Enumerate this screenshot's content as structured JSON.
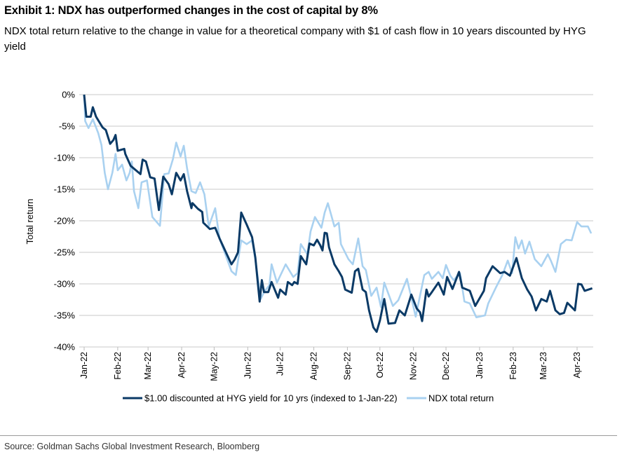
{
  "title": "Exhibit 1: NDX has outperformed changes in the cost of capital by 8%",
  "subtitle": "NDX total return relative to the change in value for a theoretical company with $1 of cash flow in 10 years discounted by HYG yield",
  "source": "Source: Goldman Sachs Global Investment Research, Bloomberg",
  "chart_data": {
    "type": "line",
    "title": "",
    "xlabel": "",
    "ylabel": "Total return",
    "xlim": [
      "2022-01-01",
      "2023-04-15"
    ],
    "ylim": [
      -40,
      0
    ],
    "y_ticks": [
      0,
      -5,
      -10,
      -15,
      -20,
      -25,
      -30,
      -35,
      -40
    ],
    "y_tick_labels": [
      "0%",
      "-5%",
      "-10%",
      "-15%",
      "-20%",
      "-25%",
      "-30%",
      "-35%",
      "-40%"
    ],
    "x_ticks": [
      "2022-01-01",
      "2022-02-01",
      "2022-03-01",
      "2022-04-01",
      "2022-05-01",
      "2022-06-01",
      "2022-07-01",
      "2022-08-01",
      "2022-09-01",
      "2022-10-01",
      "2022-11-01",
      "2022-12-01",
      "2023-01-01",
      "2023-02-01",
      "2023-03-01",
      "2023-04-01"
    ],
    "x_tick_labels": [
      "Jan-22",
      "Feb-22",
      "Mar-22",
      "Apr-22",
      "May-22",
      "Jun-22",
      "Jul-22",
      "Aug-22",
      "Sep-22",
      "Oct-22",
      "Nov-22",
      "Dec-22",
      "Jan-23",
      "Feb-23",
      "Mar-23",
      "Apr-23"
    ],
    "grid": "horizontal",
    "legend_position": "bottom",
    "series": [
      {
        "name": "$1.00 discounted at HYG yield for 10 yrs (indexed to 1-Jan-22)",
        "color": "#0b3a66",
        "points": [
          [
            "2022-01-01",
            0
          ],
          [
            "2022-01-03",
            -3.5
          ],
          [
            "2022-01-07",
            -3.5
          ],
          [
            "2022-01-09",
            -2
          ],
          [
            "2022-01-12",
            -3.5
          ],
          [
            "2022-01-18",
            -5.2
          ],
          [
            "2022-01-21",
            -5.6
          ],
          [
            "2022-01-25",
            -7.8
          ],
          [
            "2022-01-28",
            -7.2
          ],
          [
            "2022-01-30",
            -6.4
          ],
          [
            "2022-02-01",
            -8.9
          ],
          [
            "2022-02-07",
            -8.6
          ],
          [
            "2022-02-08",
            -9.4
          ],
          [
            "2022-02-13",
            -11.3
          ],
          [
            "2022-02-22",
            -12.6
          ],
          [
            "2022-02-24",
            -10.3
          ],
          [
            "2022-02-27",
            -10.6
          ],
          [
            "2022-03-03",
            -13.1
          ],
          [
            "2022-03-07",
            -13.3
          ],
          [
            "2022-03-11",
            -18.3
          ],
          [
            "2022-03-15",
            -13
          ],
          [
            "2022-03-20",
            -14.2
          ],
          [
            "2022-03-23",
            -15.8
          ],
          [
            "2022-03-27",
            -12.4
          ],
          [
            "2022-03-31",
            -13.6
          ],
          [
            "2022-04-03",
            -12.6
          ],
          [
            "2022-04-06",
            -15.3
          ],
          [
            "2022-04-10",
            -18
          ],
          [
            "2022-04-11",
            -17.2
          ],
          [
            "2022-04-16",
            -18.1
          ],
          [
            "2022-04-20",
            -18.6
          ],
          [
            "2022-04-21",
            -20.3
          ],
          [
            "2022-04-27",
            -21.3
          ],
          [
            "2022-05-02",
            -21.1
          ],
          [
            "2022-05-06",
            -22.8
          ],
          [
            "2022-05-17",
            -26.9
          ],
          [
            "2022-05-20",
            -26.1
          ],
          [
            "2022-05-23",
            -25
          ],
          [
            "2022-05-26",
            -18.7
          ],
          [
            "2022-05-31",
            -20.6
          ],
          [
            "2022-06-05",
            -22.6
          ],
          [
            "2022-06-08",
            -25.8
          ],
          [
            "2022-06-12",
            -32.8
          ],
          [
            "2022-06-14",
            -29.4
          ],
          [
            "2022-06-16",
            -31.3
          ],
          [
            "2022-06-20",
            -31.3
          ],
          [
            "2022-06-23",
            -29.7
          ],
          [
            "2022-06-29",
            -32.2
          ],
          [
            "2022-07-01",
            -30.9
          ],
          [
            "2022-07-06",
            -31.7
          ],
          [
            "2022-07-08",
            -29.7
          ],
          [
            "2022-07-12",
            -30.2
          ],
          [
            "2022-07-14",
            -29.7
          ],
          [
            "2022-07-17",
            -30
          ],
          [
            "2022-07-20",
            -25.6
          ],
          [
            "2022-07-25",
            -26.9
          ],
          [
            "2022-07-28",
            -23.6
          ],
          [
            "2022-08-01",
            -23.9
          ],
          [
            "2022-08-04",
            -23
          ],
          [
            "2022-08-07",
            -23.9
          ],
          [
            "2022-08-09",
            -24.7
          ],
          [
            "2022-08-11",
            -21.9
          ],
          [
            "2022-08-13",
            -22
          ],
          [
            "2022-08-15",
            -24.2
          ],
          [
            "2022-08-20",
            -26.9
          ],
          [
            "2022-08-24",
            -28
          ],
          [
            "2022-08-27",
            -28.9
          ],
          [
            "2022-08-30",
            -30.9
          ],
          [
            "2022-09-05",
            -31.4
          ],
          [
            "2022-09-08",
            -28
          ],
          [
            "2022-09-11",
            -27.6
          ],
          [
            "2022-09-15",
            -30.9
          ],
          [
            "2022-09-18",
            -31.3
          ],
          [
            "2022-09-21",
            -34.2
          ],
          [
            "2022-09-25",
            -36.9
          ],
          [
            "2022-09-28",
            -37.6
          ],
          [
            "2022-10-01",
            -35.8
          ],
          [
            "2022-10-05",
            -32.4
          ],
          [
            "2022-10-09",
            -36.3
          ],
          [
            "2022-10-15",
            -36.2
          ],
          [
            "2022-10-19",
            -34.2
          ],
          [
            "2022-10-24",
            -35
          ],
          [
            "2022-10-30",
            -31.7
          ],
          [
            "2022-11-04",
            -33.9
          ],
          [
            "2022-11-07",
            -34.5
          ],
          [
            "2022-11-09",
            -35.9
          ],
          [
            "2022-11-13",
            -30.9
          ],
          [
            "2022-11-15",
            -32
          ],
          [
            "2022-11-18",
            -31.3
          ],
          [
            "2022-11-24",
            -29.8
          ],
          [
            "2022-11-29",
            -31.7
          ],
          [
            "2022-12-02",
            -28.9
          ],
          [
            "2022-12-07",
            -30.8
          ],
          [
            "2022-12-13",
            -28.1
          ],
          [
            "2022-12-16",
            -30.6
          ],
          [
            "2022-12-23",
            -31.1
          ],
          [
            "2022-12-28",
            -33.5
          ],
          [
            "2023-01-05",
            -31.1
          ],
          [
            "2023-01-07",
            -29.1
          ],
          [
            "2023-01-13",
            -27.2
          ],
          [
            "2023-01-20",
            -28.3
          ],
          [
            "2023-01-24",
            -28.1
          ],
          [
            "2023-01-29",
            -28.7
          ],
          [
            "2023-02-04",
            -25.9
          ],
          [
            "2023-02-09",
            -29.1
          ],
          [
            "2023-02-14",
            -30.9
          ],
          [
            "2023-02-18",
            -32
          ],
          [
            "2023-02-22",
            -34.2
          ],
          [
            "2023-02-27",
            -32.4
          ],
          [
            "2023-03-04",
            -32.8
          ],
          [
            "2023-03-07",
            -31.1
          ],
          [
            "2023-03-12",
            -34.2
          ],
          [
            "2023-03-16",
            -34.8
          ],
          [
            "2023-03-20",
            -34.6
          ],
          [
            "2023-03-23",
            -33
          ],
          [
            "2023-03-30",
            -34.2
          ],
          [
            "2023-04-02",
            -30
          ],
          [
            "2023-04-05",
            -30.1
          ],
          [
            "2023-04-08",
            -31.1
          ],
          [
            "2023-04-15",
            -30.7
          ]
        ]
      },
      {
        "name": "NDX total return",
        "color": "#a9d1f0",
        "points": [
          [
            "2022-01-01",
            0
          ],
          [
            "2022-01-02",
            -4.2
          ],
          [
            "2022-01-05",
            -5.3
          ],
          [
            "2022-01-09",
            -3.9
          ],
          [
            "2022-01-14",
            -6.1
          ],
          [
            "2022-01-17",
            -8
          ],
          [
            "2022-01-20",
            -12.4
          ],
          [
            "2022-01-23",
            -15
          ],
          [
            "2022-01-27",
            -12.4
          ],
          [
            "2022-01-30",
            -9.4
          ],
          [
            "2022-02-01",
            -12
          ],
          [
            "2022-02-05",
            -11.1
          ],
          [
            "2022-02-09",
            -13.6
          ],
          [
            "2022-02-12",
            -12.4
          ],
          [
            "2022-02-14",
            -10.6
          ],
          [
            "2022-02-16",
            -15.3
          ],
          [
            "2022-02-20",
            -18
          ],
          [
            "2022-02-23",
            -13.9
          ],
          [
            "2022-02-28",
            -13.6
          ],
          [
            "2022-03-05",
            -19.4
          ],
          [
            "2022-03-12",
            -20.8
          ],
          [
            "2022-03-16",
            -12.6
          ],
          [
            "2022-03-20",
            -12.5
          ],
          [
            "2022-03-24",
            -10.2
          ],
          [
            "2022-03-27",
            -7.6
          ],
          [
            "2022-03-31",
            -9.8
          ],
          [
            "2022-04-03",
            -8.1
          ],
          [
            "2022-04-06",
            -11.7
          ],
          [
            "2022-04-10",
            -15.3
          ],
          [
            "2022-04-14",
            -15.6
          ],
          [
            "2022-04-18",
            -13.9
          ],
          [
            "2022-04-22",
            -15.8
          ],
          [
            "2022-04-26",
            -20.9
          ],
          [
            "2022-05-02",
            -18
          ],
          [
            "2022-05-06",
            -22.8
          ],
          [
            "2022-05-17",
            -28
          ],
          [
            "2022-05-21",
            -28.6
          ],
          [
            "2022-05-26",
            -23.1
          ],
          [
            "2022-05-31",
            -23.7
          ],
          [
            "2022-06-05",
            -23.1
          ],
          [
            "2022-06-08",
            -26.1
          ],
          [
            "2022-06-13",
            -32.4
          ],
          [
            "2022-06-16",
            -31.3
          ],
          [
            "2022-06-21",
            -30.2
          ],
          [
            "2022-06-23",
            -26.9
          ],
          [
            "2022-06-28",
            -29.8
          ],
          [
            "2022-07-06",
            -26.9
          ],
          [
            "2022-07-13",
            -28.9
          ],
          [
            "2022-07-17",
            -28.3
          ],
          [
            "2022-07-20",
            -23.7
          ],
          [
            "2022-07-26",
            -25.3
          ],
          [
            "2022-07-29",
            -21.7
          ],
          [
            "2022-08-02",
            -19.4
          ],
          [
            "2022-08-08",
            -21.1
          ],
          [
            "2022-08-11",
            -18.7
          ],
          [
            "2022-08-14",
            -17.2
          ],
          [
            "2022-08-20",
            -20.9
          ],
          [
            "2022-08-24",
            -20.3
          ],
          [
            "2022-08-26",
            -23.7
          ],
          [
            "2022-09-02",
            -26.1
          ],
          [
            "2022-09-06",
            -26.9
          ],
          [
            "2022-09-11",
            -22.8
          ],
          [
            "2022-09-15",
            -27.2
          ],
          [
            "2022-09-18",
            -27.8
          ],
          [
            "2022-09-23",
            -31.9
          ],
          [
            "2022-09-28",
            -30.6
          ],
          [
            "2022-10-02",
            -33.7
          ],
          [
            "2022-10-05",
            -29.8
          ],
          [
            "2022-10-13",
            -33.5
          ],
          [
            "2022-10-18",
            -32.6
          ],
          [
            "2022-10-26",
            -29.2
          ],
          [
            "2022-11-03",
            -35.2
          ],
          [
            "2022-11-11",
            -28.6
          ],
          [
            "2022-11-15",
            -28.1
          ],
          [
            "2022-11-18",
            -29.2
          ],
          [
            "2022-11-24",
            -28.1
          ],
          [
            "2022-11-28",
            -29.1
          ],
          [
            "2022-12-01",
            -27
          ],
          [
            "2022-12-05",
            -28.7
          ],
          [
            "2022-12-08",
            -29.4
          ],
          [
            "2022-12-14",
            -28.3
          ],
          [
            "2022-12-18",
            -32.8
          ],
          [
            "2022-12-23",
            -33.1
          ],
          [
            "2022-12-29",
            -35.3
          ],
          [
            "2023-01-06",
            -35
          ],
          [
            "2023-01-09",
            -33.1
          ],
          [
            "2023-01-16",
            -30.6
          ],
          [
            "2023-01-22",
            -28.6
          ],
          [
            "2023-01-27",
            -26.3
          ],
          [
            "2023-01-31",
            -28.3
          ],
          [
            "2023-02-03",
            -22.6
          ],
          [
            "2023-02-06",
            -24.4
          ],
          [
            "2023-02-09",
            -23.1
          ],
          [
            "2023-02-12",
            -25.2
          ],
          [
            "2023-02-16",
            -23.3
          ],
          [
            "2023-02-21",
            -26.1
          ],
          [
            "2023-02-27",
            -27.2
          ],
          [
            "2023-03-05",
            -25.3
          ],
          [
            "2023-03-08",
            -26.4
          ],
          [
            "2023-03-12",
            -28.1
          ],
          [
            "2023-03-17",
            -23.7
          ],
          [
            "2023-03-22",
            -23
          ],
          [
            "2023-03-27",
            -23.1
          ],
          [
            "2023-04-01",
            -20.2
          ],
          [
            "2023-04-05",
            -20.9
          ],
          [
            "2023-04-11",
            -20.9
          ],
          [
            "2023-04-14",
            -22
          ]
        ]
      }
    ]
  }
}
